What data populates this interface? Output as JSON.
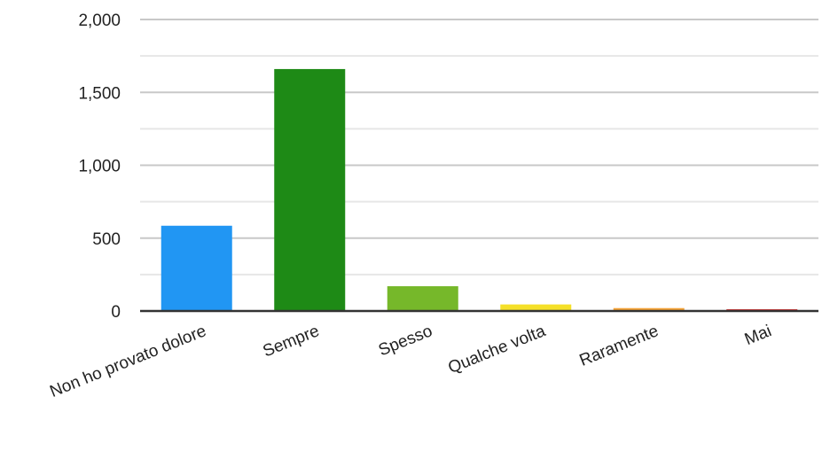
{
  "chart_data": {
    "type": "bar",
    "categories": [
      "Non ho provato dolore",
      "Sempre",
      "Spesso",
      "Qualche volta",
      "Raramente",
      "Mai"
    ],
    "values": [
      585,
      1660,
      170,
      45,
      20,
      12
    ],
    "colors": [
      "#2196f3",
      "#1e8a16",
      "#76b82a",
      "#f5e029",
      "#f4a235",
      "#d32f2f"
    ],
    "ylim": [
      0,
      2000
    ],
    "yticks": [
      0,
      500,
      1000,
      1500,
      2000
    ],
    "ytick_labels": [
      "0",
      "500",
      "1,000",
      "1,500",
      "2,000"
    ],
    "minor_gridlines": [
      250,
      750,
      1250,
      1750
    ],
    "grid": true,
    "legend": false,
    "title": "",
    "xlabel": "",
    "ylabel": ""
  }
}
